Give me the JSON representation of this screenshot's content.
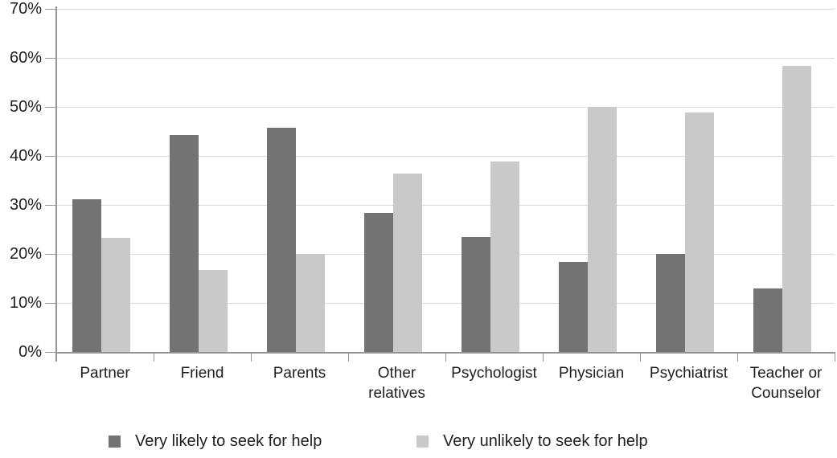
{
  "chart_data": {
    "type": "bar",
    "title": "",
    "xlabel": "",
    "ylabel": "",
    "categories": [
      "Partner",
      "Friend",
      "Parents",
      "Other relatives",
      "Psychologist",
      "Physician",
      "Psychiatrist",
      "Teacher or Counselor"
    ],
    "series": [
      {
        "name": "Very likely to seek for help",
        "color": "#737373",
        "values": [
          31.1,
          44.2,
          45.8,
          28.3,
          23.5,
          18.3,
          20.0,
          12.9
        ]
      },
      {
        "name": "Very unlikely to seek for help",
        "color": "#c9c9c9",
        "values": [
          23.3,
          16.7,
          20.0,
          36.4,
          38.9,
          50.0,
          48.8,
          58.3
        ]
      }
    ],
    "ylim": [
      0,
      70
    ],
    "ytick_step": 10,
    "ytick_labels": [
      "0%",
      "10%",
      "20%",
      "30%",
      "40%",
      "50%",
      "60%",
      "70%"
    ],
    "grid": true,
    "legend_position": "bottom",
    "colors": {
      "grid": "#d9d9d9",
      "axis": "#949494",
      "text": "#1f1f1f"
    }
  },
  "legend": {
    "likely_label": "Very likely to seek for help",
    "unlikely_label": "Very unlikely to seek for help"
  }
}
